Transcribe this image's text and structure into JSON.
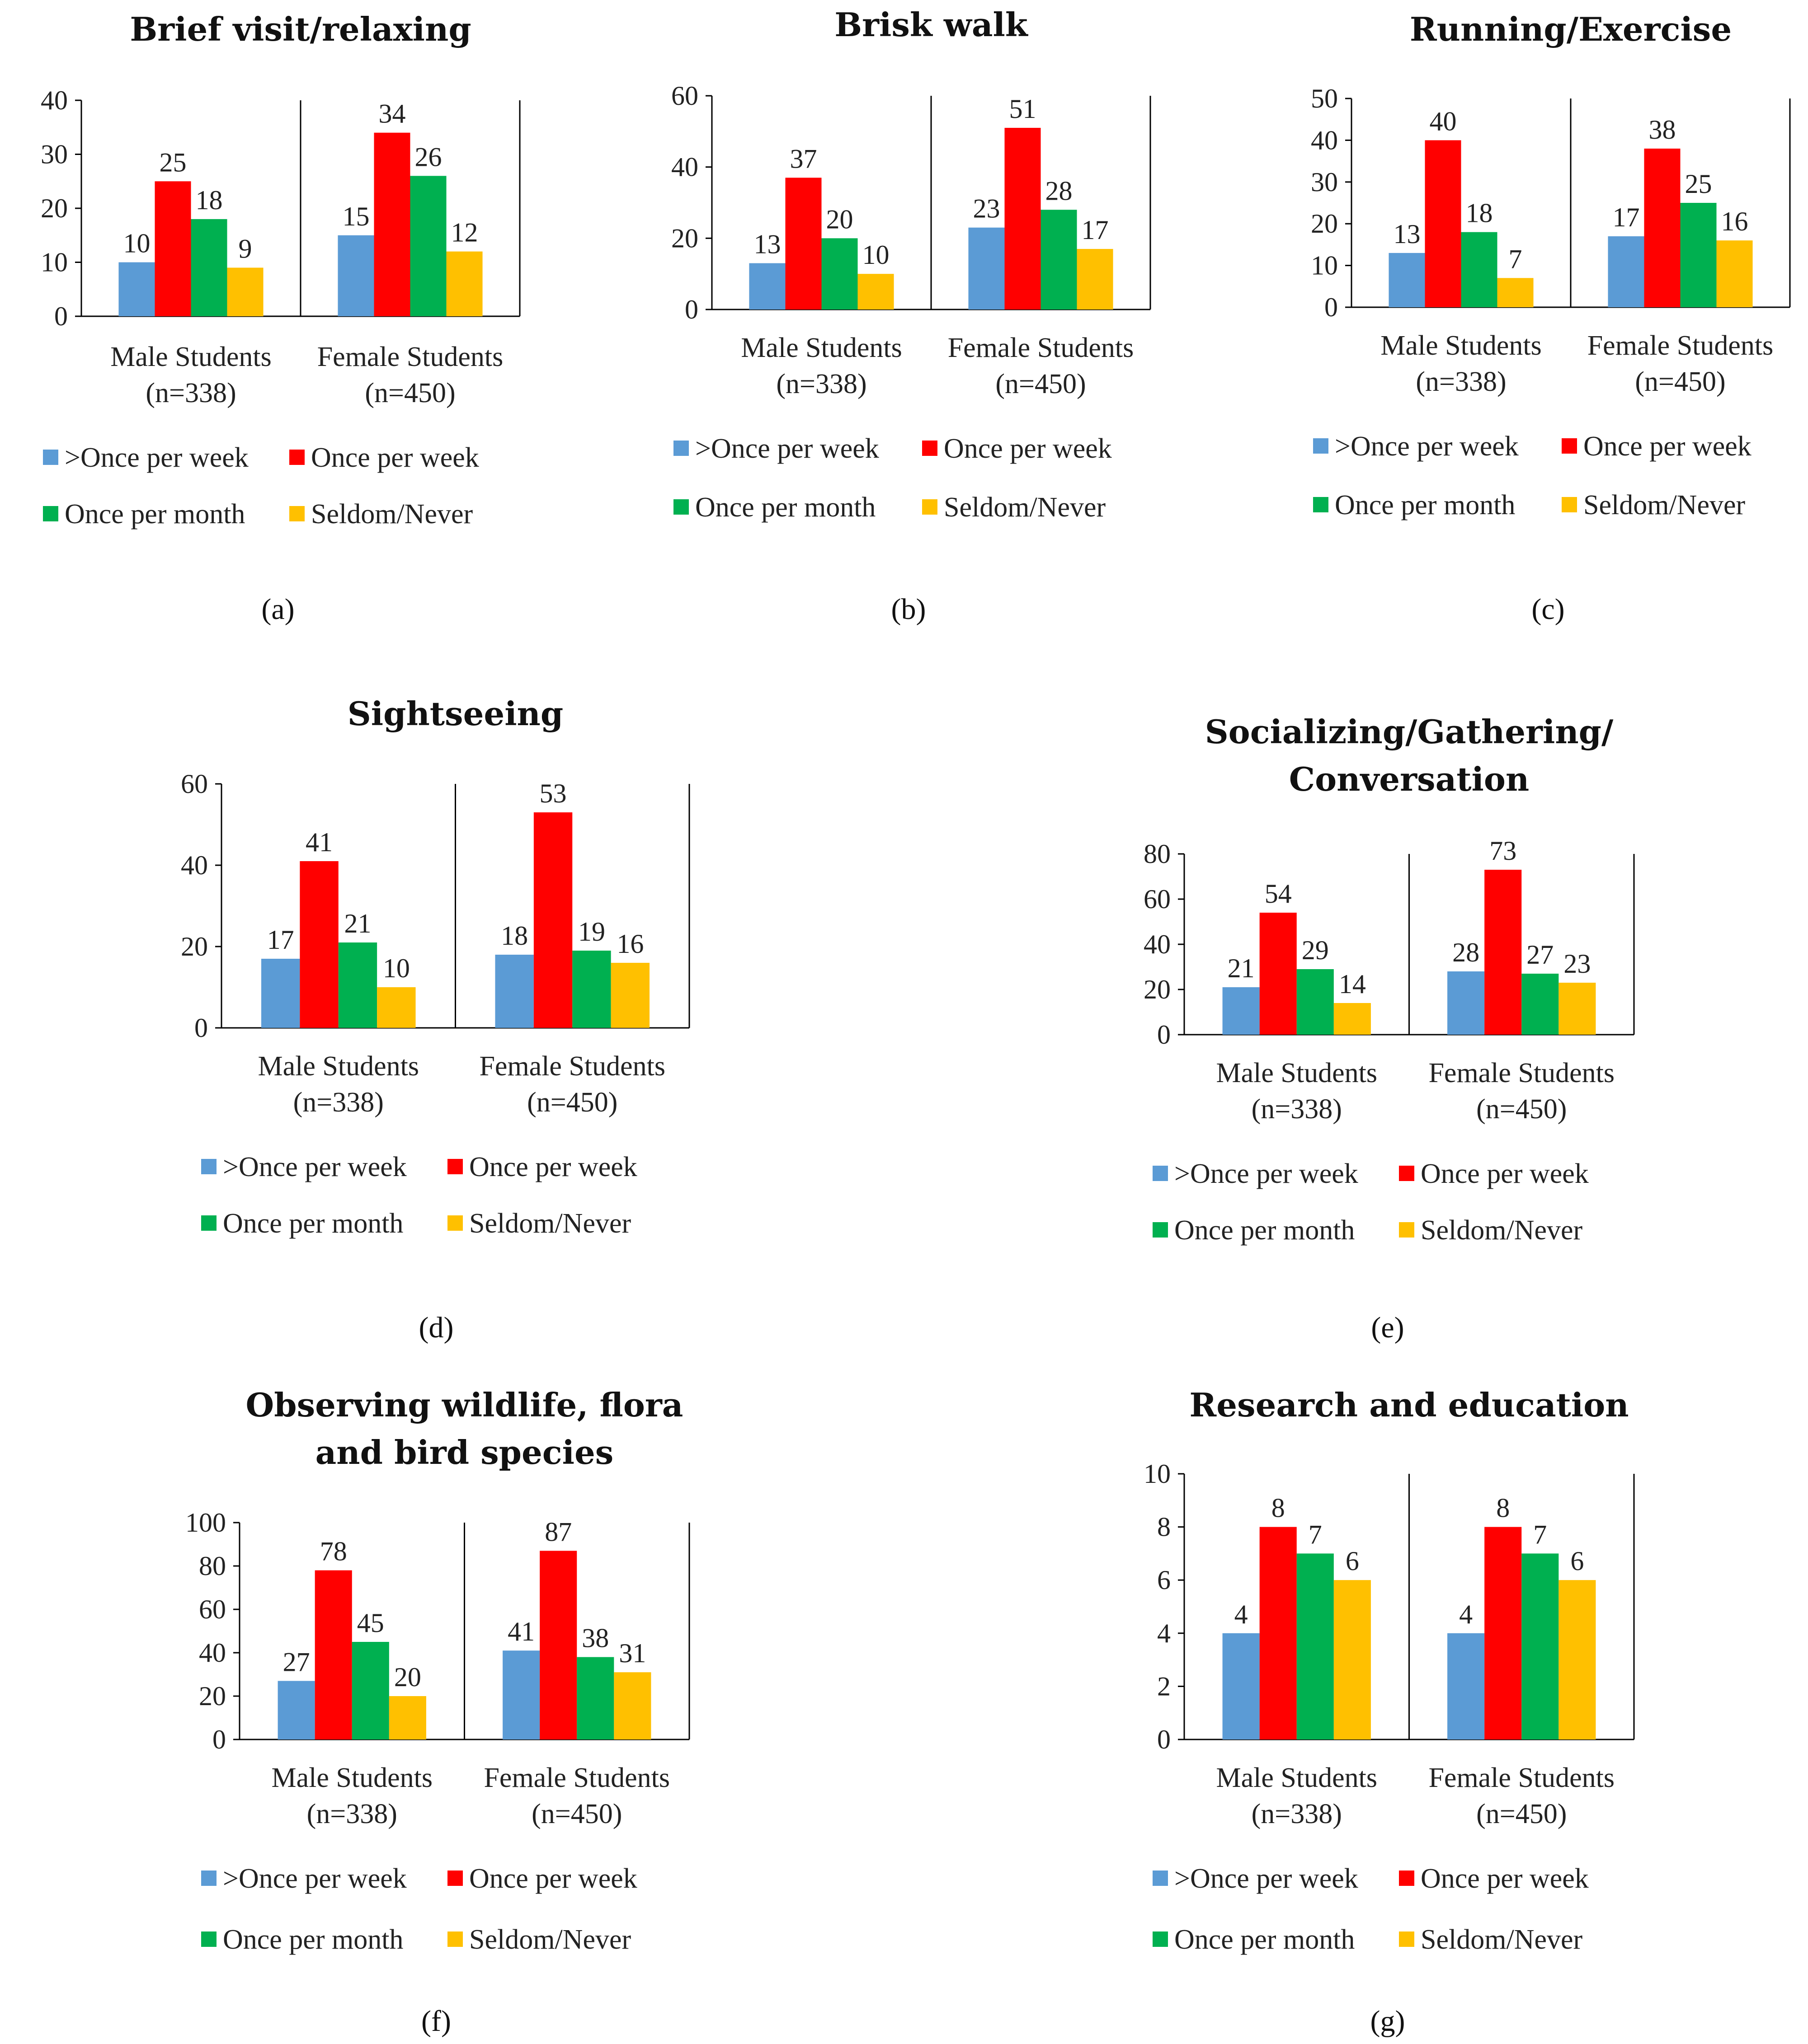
{
  "figure": {
    "colors": {
      "more_than_once_per_week": "#5b9bd5",
      "once_per_week": "#ff0000",
      "once_per_month": "#00b050",
      "seldom_never": "#ffc000"
    },
    "legend": [
      ">Once per week",
      "Once per week",
      "Once per month",
      "Seldom/Never"
    ]
  },
  "chart_data": [
    {
      "id": "a",
      "panel_label": "(a)",
      "type": "bar",
      "title_lines": [
        "Brief visit/relaxing"
      ],
      "categories": [
        [
          "Male Students",
          "(n=338)"
        ],
        [
          "Female Students",
          "(n=450)"
        ]
      ],
      "series": [
        {
          "name": ">Once per week",
          "values": [
            10,
            15
          ]
        },
        {
          "name": "Once per week",
          "values": [
            25,
            34
          ]
        },
        {
          "name": "Once per month",
          "values": [
            18,
            26
          ]
        },
        {
          "name": "Seldom/Never",
          "values": [
            9,
            12
          ]
        }
      ],
      "ylim": [
        0,
        40
      ],
      "yticks": [
        0,
        10,
        20,
        30,
        40
      ]
    },
    {
      "id": "b",
      "panel_label": "(b)",
      "type": "bar",
      "title_lines": [
        "Brisk walk"
      ],
      "categories": [
        [
          "Male Students",
          "(n=338)"
        ],
        [
          "Female Students",
          "(n=450)"
        ]
      ],
      "series": [
        {
          "name": ">Once per week",
          "values": [
            13,
            23
          ]
        },
        {
          "name": "Once per week",
          "values": [
            37,
            51
          ]
        },
        {
          "name": "Once per month",
          "values": [
            20,
            28
          ]
        },
        {
          "name": "Seldom/Never",
          "values": [
            10,
            17
          ]
        }
      ],
      "ylim": [
        0,
        60
      ],
      "yticks": [
        0,
        20,
        40,
        60
      ]
    },
    {
      "id": "c",
      "panel_label": "(c)",
      "type": "bar",
      "title_lines": [
        "Running/Exercise"
      ],
      "categories": [
        [
          "Male Students",
          "(n=338)"
        ],
        [
          "Female Students",
          "(n=450)"
        ]
      ],
      "series": [
        {
          "name": ">Once per week",
          "values": [
            13,
            17
          ]
        },
        {
          "name": "Once per week",
          "values": [
            40,
            38
          ]
        },
        {
          "name": "Once per month",
          "values": [
            18,
            25
          ]
        },
        {
          "name": "Seldom/Never",
          "values": [
            7,
            16
          ]
        }
      ],
      "ylim": [
        0,
        50
      ],
      "yticks": [
        0,
        10,
        20,
        30,
        40,
        50
      ]
    },
    {
      "id": "d",
      "panel_label": "(d)",
      "type": "bar",
      "title_lines": [
        "Sightseeing"
      ],
      "categories": [
        [
          "Male Students",
          "(n=338)"
        ],
        [
          "Female Students",
          "(n=450)"
        ]
      ],
      "series": [
        {
          "name": ">Once per week",
          "values": [
            17,
            18
          ]
        },
        {
          "name": "Once per week",
          "values": [
            41,
            53
          ]
        },
        {
          "name": "Once per month",
          "values": [
            21,
            19
          ]
        },
        {
          "name": "Seldom/Never",
          "values": [
            10,
            16
          ]
        }
      ],
      "ylim": [
        0,
        60
      ],
      "yticks": [
        0,
        20,
        40,
        60
      ]
    },
    {
      "id": "e",
      "panel_label": "(e)",
      "type": "bar",
      "title_lines": [
        "Socializing/Gathering/",
        "Conversation"
      ],
      "categories": [
        [
          "Male Students",
          "(n=338)"
        ],
        [
          "Female Students",
          "(n=450)"
        ]
      ],
      "series": [
        {
          "name": ">Once per week",
          "values": [
            21,
            28
          ]
        },
        {
          "name": "Once per week",
          "values": [
            54,
            73
          ]
        },
        {
          "name": "Once per month",
          "values": [
            29,
            27
          ]
        },
        {
          "name": "Seldom/Never",
          "values": [
            14,
            23
          ]
        }
      ],
      "ylim": [
        0,
        80
      ],
      "yticks": [
        0,
        20,
        40,
        60,
        80
      ]
    },
    {
      "id": "f",
      "panel_label": "(f)",
      "type": "bar",
      "title_lines": [
        "Observing wildlife, flora",
        "and bird species"
      ],
      "categories": [
        [
          "Male Students",
          "(n=338)"
        ],
        [
          "Female Students",
          "(n=450)"
        ]
      ],
      "series": [
        {
          "name": ">Once per week",
          "values": [
            27,
            41
          ]
        },
        {
          "name": "Once per week",
          "values": [
            78,
            87
          ]
        },
        {
          "name": "Once per month",
          "values": [
            45,
            38
          ]
        },
        {
          "name": "Seldom/Never",
          "values": [
            20,
            31
          ]
        }
      ],
      "ylim": [
        0,
        100
      ],
      "yticks": [
        0,
        20,
        40,
        60,
        80,
        100
      ]
    },
    {
      "id": "g",
      "panel_label": "(g)",
      "type": "bar",
      "title_lines": [
        "Research and education"
      ],
      "categories": [
        [
          "Male Students",
          "(n=338)"
        ],
        [
          "Female Students",
          "(n=450)"
        ]
      ],
      "series": [
        {
          "name": ">Once per week",
          "values": [
            4,
            4
          ]
        },
        {
          "name": "Once per week",
          "values": [
            8,
            8
          ]
        },
        {
          "name": "Once per month",
          "values": [
            7,
            7
          ]
        },
        {
          "name": "Seldom/Never",
          "values": [
            6,
            6
          ]
        }
      ],
      "ylim": [
        0,
        10
      ],
      "yticks": [
        0,
        2,
        4,
        6,
        8,
        10
      ]
    }
  ]
}
